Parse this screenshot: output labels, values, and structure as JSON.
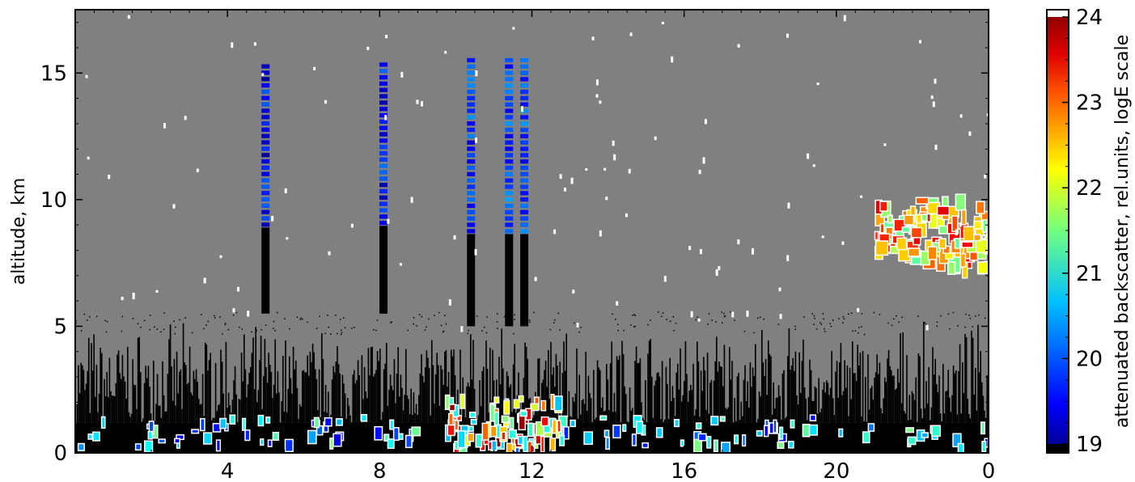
{
  "chart_data": {
    "type": "heatmap",
    "title": "",
    "xlabel": "",
    "ylabel": "altitude, km",
    "x_ticks": [
      "4",
      "8",
      "12",
      "16",
      "20",
      "0"
    ],
    "y_ticks": [
      "0",
      "5",
      "10",
      "15"
    ],
    "xlim": [
      0,
      24
    ],
    "ylim": [
      0,
      17.5
    ],
    "grid": false,
    "background": "no signal (gray)",
    "colorbar": {
      "label": "attenuated backscatter, rel.units, logE scale",
      "ticks": [
        "19",
        "20",
        "21",
        "22",
        "23",
        "24"
      ],
      "range": [
        19,
        24
      ],
      "colormap": "jet"
    },
    "features": [
      {
        "kind": "boundary_layer_noise",
        "x": [
          0,
          24
        ],
        "y": [
          0,
          5
        ]
      },
      {
        "kind": "surface_aerosol_patches",
        "x": [
          0,
          24
        ],
        "y": [
          0,
          1.5
        ],
        "value": 20.5
      },
      {
        "kind": "low_cloud",
        "x": [
          9.7,
          12.8
        ],
        "y": [
          0,
          2.3
        ],
        "value": 23.0
      },
      {
        "kind": "vertical_profile",
        "x": 5.0,
        "y": [
          5.5,
          15.2
        ],
        "value": 19.6
      },
      {
        "kind": "vertical_profile",
        "x": 8.1,
        "y": [
          5.5,
          15.4
        ],
        "value": 19.7
      },
      {
        "kind": "vertical_profile",
        "x": 10.4,
        "y": [
          5.0,
          15.4
        ],
        "value": 19.9
      },
      {
        "kind": "vertical_profile",
        "x": 11.4,
        "y": [
          5.0,
          15.4
        ],
        "value": 20.0
      },
      {
        "kind": "vertical_profile",
        "x": 11.8,
        "y": [
          5.0,
          15.4
        ],
        "value": 19.9
      },
      {
        "kind": "cirrus_cloud",
        "x": [
          21.0,
          24
        ],
        "y": [
          6.5,
          10.5
        ],
        "value": 22.8
      }
    ]
  },
  "colors": {
    "nodata": "#808080",
    "noise": "#000000",
    "cloud_outline": "#ffffff"
  }
}
